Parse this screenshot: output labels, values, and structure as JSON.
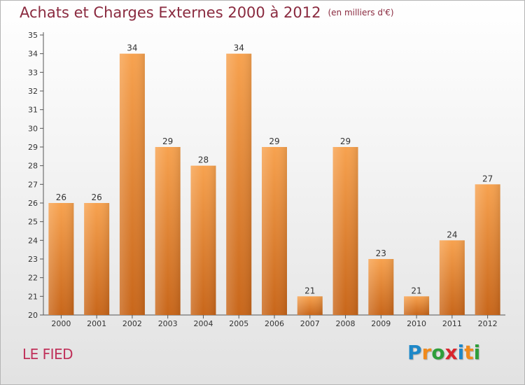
{
  "title": "Achats et Charges Externes 2000 à 2012",
  "subtitle": "(en milliers d'€)",
  "commune": "LE FIED",
  "logo": {
    "text": "Proxiti",
    "letters": [
      {
        "ch": "P",
        "color": "#1e88c8"
      },
      {
        "ch": "r",
        "color": "#f08a1c"
      },
      {
        "ch": "o",
        "color": "#2e9e3a"
      },
      {
        "ch": "x",
        "color": "#d8262e"
      },
      {
        "ch": "i",
        "color": "#1e88c8"
      },
      {
        "ch": "t",
        "color": "#f08a1c"
      },
      {
        "ch": "i",
        "color": "#2e9e3a"
      }
    ]
  },
  "colors": {
    "bar_light": "#f7a24f",
    "bar_dark": "#c8661a",
    "title": "#8a2a3f",
    "commune": "#c0315a"
  },
  "chart_data": {
    "type": "bar",
    "categories": [
      "2000",
      "2001",
      "2002",
      "2003",
      "2004",
      "2005",
      "2006",
      "2007",
      "2008",
      "2009",
      "2010",
      "2011",
      "2012"
    ],
    "values": [
      26,
      26,
      34,
      29,
      28,
      34,
      29,
      21,
      29,
      23,
      21,
      24,
      27
    ],
    "ylim": [
      20,
      35
    ],
    "yticks": [
      20,
      21,
      22,
      23,
      24,
      25,
      26,
      27,
      28,
      29,
      30,
      31,
      32,
      33,
      34,
      35
    ],
    "grid": false,
    "legend": "none"
  }
}
